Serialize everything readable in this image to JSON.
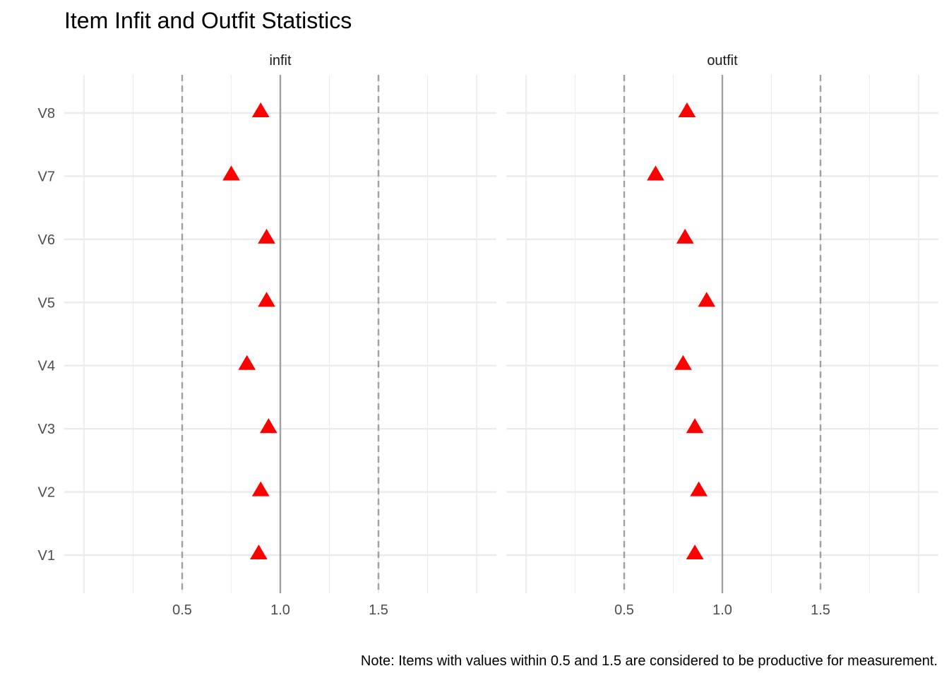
{
  "chart_data": {
    "type": "scatter",
    "title": "Item Infit and Outfit Statistics",
    "caption": "Note: Items with values within 0.5 and 1.5 are considered to be productive for measurement.",
    "xlabel": "",
    "ylabel": "",
    "categories": [
      "V1",
      "V2",
      "V3",
      "V4",
      "V5",
      "V6",
      "V7",
      "V8"
    ],
    "x_ticks": [
      0.5,
      1.0,
      1.5
    ],
    "x_tick_labels": [
      "0.5",
      "1.0",
      "1.5"
    ],
    "xlim": [
      0.0,
      2.0
    ],
    "reference_lines": [
      {
        "value": 0.5,
        "style": "dashed"
      },
      {
        "value": 1.0,
        "style": "solid"
      },
      {
        "value": 1.5,
        "style": "dashed"
      }
    ],
    "grid": true,
    "legend": "none",
    "marker": "triangle",
    "marker_color": "#ff0000",
    "panels": [
      {
        "name": "infit",
        "values": [
          0.89,
          0.9,
          0.94,
          0.83,
          0.93,
          0.93,
          0.75,
          0.9
        ]
      },
      {
        "name": "outfit",
        "values": [
          0.86,
          0.88,
          0.86,
          0.8,
          0.92,
          0.81,
          0.66,
          0.82
        ]
      }
    ]
  }
}
